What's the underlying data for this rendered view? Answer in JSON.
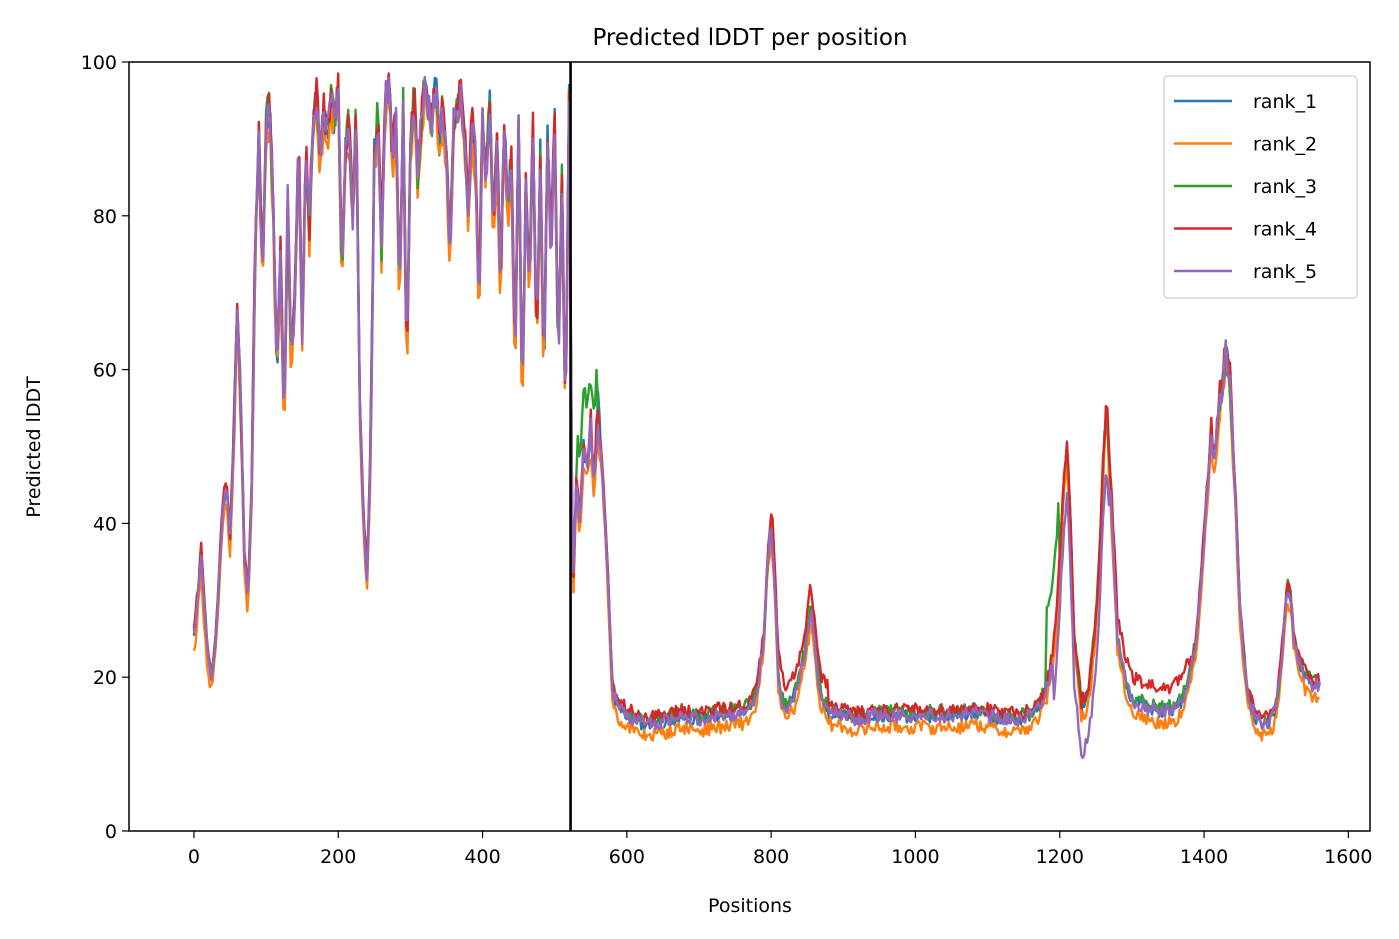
{
  "chart_data": {
    "type": "line",
    "title": "Predicted lDDT per position",
    "xlabel": "Positions",
    "ylabel": "Predicted lDDT",
    "xlim": [
      -90,
      1630
    ],
    "ylim": [
      0,
      100
    ],
    "xticks": [
      0,
      200,
      400,
      600,
      800,
      1000,
      1200,
      1400,
      1600
    ],
    "yticks": [
      0,
      20,
      40,
      60,
      80,
      100
    ],
    "grid": false,
    "legend_position": "top-right",
    "vertical_line": {
      "x": 522,
      "color": "#000000"
    },
    "shared_profile": {
      "x": [
        0,
        5,
        10,
        15,
        20,
        25,
        30,
        35,
        40,
        45,
        50,
        55,
        60,
        65,
        70,
        75,
        80,
        85,
        90,
        95,
        100,
        105,
        110,
        115,
        120,
        125,
        130,
        135,
        140,
        145,
        150,
        155,
        160,
        165,
        170,
        175,
        180,
        185,
        190,
        195,
        200,
        205,
        210,
        215,
        220,
        225,
        230,
        235,
        240,
        245,
        250,
        255,
        260,
        265,
        270,
        275,
        280,
        285,
        290,
        295,
        300,
        305,
        310,
        315,
        320,
        325,
        330,
        335,
        340,
        345,
        350,
        355,
        360,
        365,
        370,
        375,
        380,
        385,
        390,
        395,
        400,
        405,
        410,
        415,
        420,
        425,
        430,
        435,
        440,
        445,
        450,
        455,
        460,
        465,
        470,
        475,
        480,
        485,
        490,
        495,
        500,
        505,
        510,
        515,
        520,
        525,
        530,
        535,
        540,
        545,
        550,
        555,
        560,
        565,
        570,
        575,
        580,
        590,
        600,
        620,
        640,
        660,
        680,
        700,
        720,
        740,
        760,
        770,
        780,
        790,
        795,
        800,
        805,
        810,
        815,
        820,
        830,
        840,
        850,
        855,
        860,
        865,
        870,
        880,
        900,
        920,
        940,
        960,
        980,
        1000,
        1020,
        1040,
        1060,
        1080,
        1100,
        1120,
        1140,
        1160,
        1170,
        1180,
        1190,
        1195,
        1200,
        1205,
        1210,
        1215,
        1220,
        1230,
        1240,
        1250,
        1255,
        1260,
        1265,
        1270,
        1280,
        1290,
        1300,
        1320,
        1340,
        1360,
        1370,
        1380,
        1390,
        1395,
        1400,
        1405,
        1410,
        1415,
        1420,
        1425,
        1430,
        1435,
        1440,
        1445,
        1450,
        1460,
        1470,
        1480,
        1490,
        1500,
        1505,
        1510,
        1515,
        1520,
        1525,
        1530,
        1540,
        1550,
        1560
      ],
      "y": [
        25,
        30,
        36,
        28,
        22,
        20,
        25,
        33,
        42,
        45,
        38,
        50,
        68,
        55,
        35,
        30,
        45,
        76,
        90,
        70,
        92,
        94,
        80,
        60,
        75,
        52,
        82,
        60,
        70,
        90,
        65,
        88,
        78,
        92,
        95,
        88,
        93,
        90,
        96,
        92,
        97,
        72,
        88,
        92,
        80,
        94,
        55,
        40,
        33,
        50,
        88,
        93,
        75,
        95,
        97,
        88,
        92,
        70,
        94,
        60,
        88,
        96,
        85,
        92,
        97,
        94,
        92,
        97,
        90,
        94,
        88,
        75,
        92,
        94,
        95,
        90,
        80,
        92,
        88,
        68,
        92,
        85,
        95,
        78,
        90,
        70,
        93,
        80,
        88,
        60,
        92,
        55,
        85,
        70,
        92,
        62,
        88,
        58,
        90,
        75,
        92,
        60,
        85,
        53,
        95,
        30,
        45,
        40,
        50,
        47,
        52,
        45,
        55,
        48,
        40,
        30,
        18,
        16,
        15,
        14,
        14,
        14.5,
        15,
        14.5,
        15,
        15,
        15.5,
        16,
        18,
        25,
        35,
        40,
        32,
        20,
        17,
        16,
        17,
        20,
        25,
        29,
        25,
        20,
        17,
        15.5,
        15,
        14.5,
        15,
        15,
        15,
        15,
        15,
        15,
        15,
        15.5,
        15,
        14.5,
        14.5,
        15,
        16,
        18,
        22,
        27,
        35,
        44,
        50,
        40,
        25,
        16,
        18,
        27,
        35,
        47,
        55,
        45,
        25,
        20,
        17,
        16,
        15.5,
        16,
        17,
        20,
        25,
        32,
        38,
        45,
        52,
        48,
        55,
        58,
        62,
        60,
        50,
        40,
        28,
        18,
        15,
        14,
        14,
        16,
        20,
        25,
        32,
        30,
        25,
        22,
        20,
        19,
        19
      ]
    },
    "series": [
      {
        "name": "rank_1",
        "color": "#1f77b4"
      },
      {
        "name": "rank_2",
        "color": "#ff7f0e"
      },
      {
        "name": "rank_3",
        "color": "#2ca02c"
      },
      {
        "name": "rank_4",
        "color": "#d62728"
      },
      {
        "name": "rank_5",
        "color": "#9467bd"
      }
    ]
  }
}
